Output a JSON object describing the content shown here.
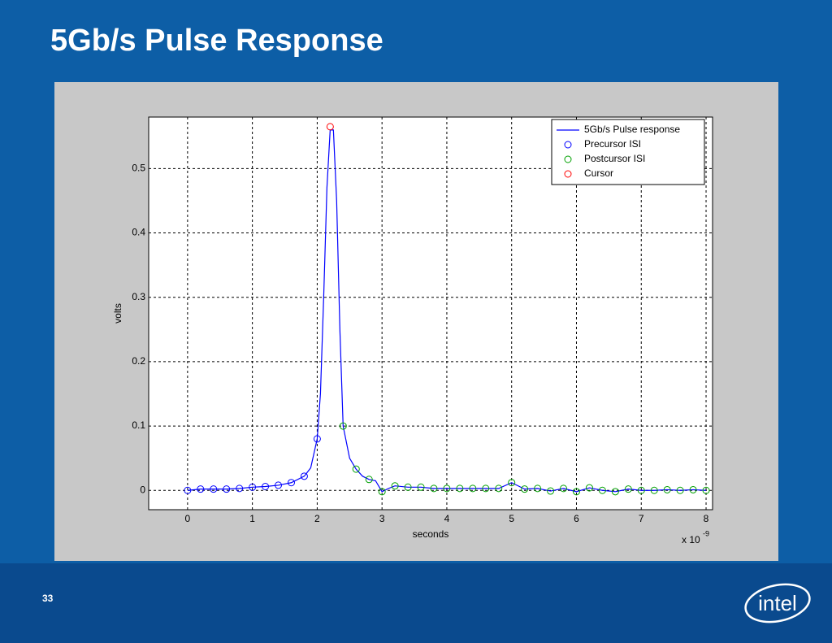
{
  "slide": {
    "title": "5Gb/s Pulse Response",
    "page_number": "33",
    "logo": "intel"
  },
  "chart_data": {
    "type": "line",
    "x_label": "seconds",
    "y_label": "volts",
    "x_multiplier": "x 10",
    "x_exponent": "-9",
    "xlim": [
      -0.6,
      8.1
    ],
    "ylim": [
      -0.03,
      0.58
    ],
    "xticks": [
      0,
      1,
      2,
      3,
      4,
      5,
      6,
      7,
      8
    ],
    "yticks": [
      0,
      0.1,
      0.2,
      0.3,
      0.4,
      0.5
    ],
    "grid": true,
    "legend": "upper right",
    "series": [
      {
        "name": "5Gb/s Pulse response",
        "color": "#0000ff",
        "style": "line",
        "x": [
          0,
          0.2,
          0.4,
          0.6,
          0.8,
          1.0,
          1.2,
          1.4,
          1.6,
          1.8,
          1.9,
          2.0,
          2.05,
          2.1,
          2.15,
          2.2,
          2.25,
          2.3,
          2.35,
          2.4,
          2.5,
          2.6,
          2.7,
          2.8,
          2.9,
          3.0,
          3.1,
          3.2,
          3.4,
          3.6,
          3.8,
          4.0,
          4.2,
          4.4,
          4.6,
          4.8,
          5.0,
          5.2,
          5.4,
          5.6,
          5.8,
          6.0,
          6.2,
          6.4,
          6.6,
          6.8,
          7.0,
          7.2,
          7.4,
          7.6,
          7.8,
          8.0
        ],
        "values": [
          0,
          0.002,
          0.002,
          0.002,
          0.003,
          0.005,
          0.006,
          0.008,
          0.012,
          0.022,
          0.035,
          0.08,
          0.15,
          0.3,
          0.47,
          0.56,
          0.56,
          0.45,
          0.25,
          0.1,
          0.05,
          0.033,
          0.022,
          0.017,
          0.015,
          -0.002,
          0.003,
          0.007,
          0.005,
          0.005,
          0.003,
          0.003,
          0.003,
          0.003,
          0.003,
          0.003,
          0.012,
          0.002,
          0.003,
          -0.001,
          0.003,
          -0.002,
          0.004,
          0.0,
          -0.002,
          0.002,
          0.0,
          0.0,
          0.001,
          0.0,
          0.001,
          0.0
        ]
      },
      {
        "name": "Precursor ISI",
        "color": "#0000ff",
        "style": "marker",
        "x": [
          0,
          0.2,
          0.4,
          0.6,
          0.8,
          1.0,
          1.2,
          1.4,
          1.6,
          1.8,
          2.0
        ],
        "values": [
          0,
          0.002,
          0.002,
          0.002,
          0.003,
          0.005,
          0.006,
          0.008,
          0.012,
          0.022,
          0.08
        ]
      },
      {
        "name": "Postcursor ISI",
        "color": "#00a000",
        "style": "marker",
        "x": [
          2.4,
          2.6,
          2.8,
          3.0,
          3.2,
          3.4,
          3.6,
          3.8,
          4.0,
          4.2,
          4.4,
          4.6,
          4.8,
          5.0,
          5.2,
          5.4,
          5.6,
          5.8,
          6.0,
          6.2,
          6.4,
          6.6,
          6.8,
          7.0,
          7.2,
          7.4,
          7.6,
          7.8,
          8.0
        ],
        "values": [
          0.1,
          0.033,
          0.017,
          -0.002,
          0.007,
          0.005,
          0.005,
          0.003,
          0.003,
          0.003,
          0.003,
          0.003,
          0.003,
          0.012,
          0.002,
          0.003,
          -0.001,
          0.003,
          -0.002,
          0.004,
          0.0,
          -0.002,
          0.002,
          0.0,
          0.0,
          0.001,
          0.0,
          0.001,
          0.0
        ]
      },
      {
        "name": "Cursor",
        "color": "#ff0000",
        "style": "marker",
        "x": [
          2.2
        ],
        "values": [
          0.565
        ]
      }
    ]
  }
}
